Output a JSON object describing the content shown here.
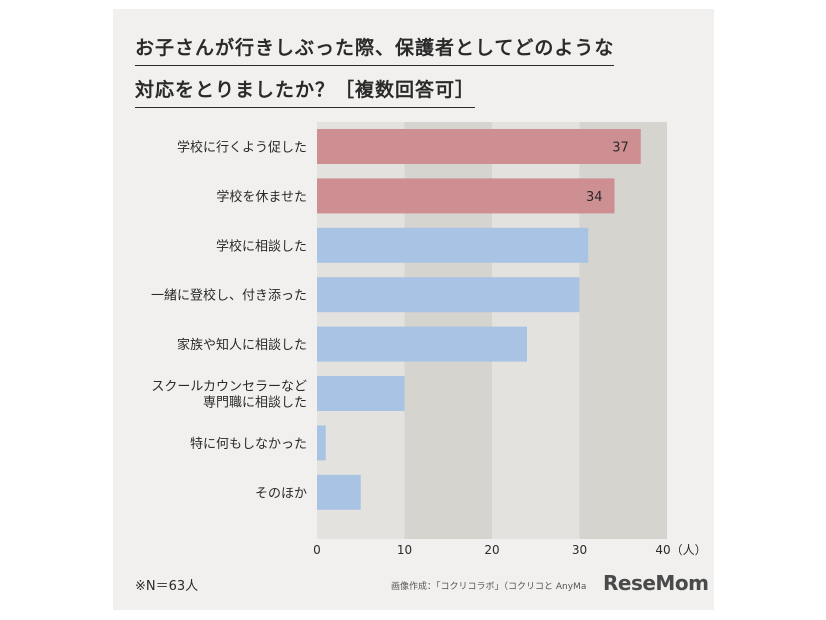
{
  "header": {
    "title_line1": "お子さんが行きしぶった際、保護者としてどのような",
    "title_line2": "対応をとりましたか？［複数回答可］"
  },
  "footer": {
    "note": "※N＝63人",
    "credit": "画像作成：「コクリコラボ」（コクリコと AnyMa",
    "logo": "ReseMom"
  },
  "colors": {
    "highlight_bar": "#cd8f91",
    "normal_bar": "#a8c3e3",
    "band_light": "#e4e2de",
    "band_dark": "#d6d4cf"
  },
  "chart_data": {
    "type": "bar",
    "orientation": "horizontal",
    "title": "お子さんが行きしぶった際、保護者としてどのような対応をとりましたか？［複数回答可］",
    "categories": [
      "学校に行くよう促した",
      "学校を休ませた",
      "学校に相談した",
      "一緒に登校し、付き添った",
      "家族や知人に相談した",
      "スクールカウンセラーなど\n専門職に相談した",
      "特に何もしなかった",
      "そのほか"
    ],
    "values": [
      37,
      34,
      31,
      30,
      24,
      10,
      1,
      5
    ],
    "data_labels": [
      "37",
      "34",
      "",
      "",
      "",
      "",
      "",
      ""
    ],
    "highlighted": [
      true,
      true,
      false,
      false,
      false,
      false,
      false,
      false
    ],
    "xticks": [
      "0",
      "10",
      "20",
      "30",
      "40（人）"
    ],
    "xlim": [
      0,
      40
    ],
    "unit": "人",
    "grid": false
  }
}
